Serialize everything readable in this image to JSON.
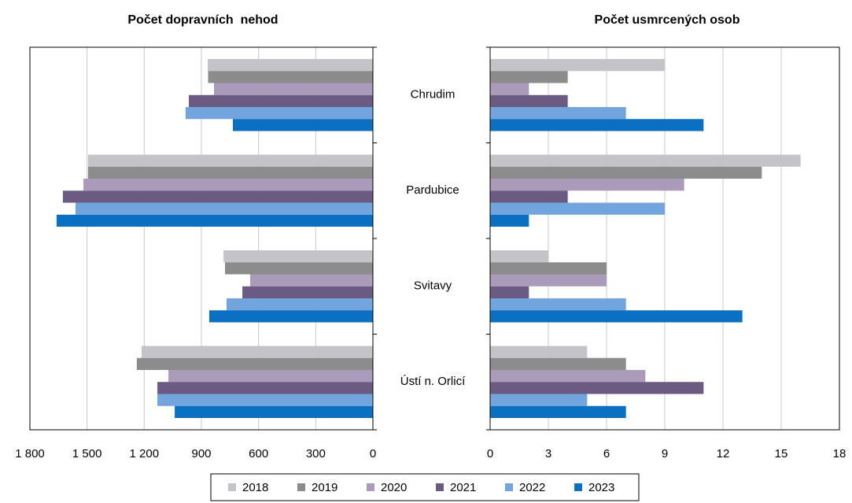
{
  "chart_data": [
    {
      "type": "bar",
      "orientation": "horizontal",
      "title": "Počet dopravních  nehod",
      "categories": [
        "Chrudim",
        "Pardubice",
        "Svitavy",
        "Ústí n. Orlicí"
      ],
      "series": [
        {
          "name": "2018",
          "color": "#c3c3c9",
          "values": [
            867,
            1495,
            784,
            1214
          ]
        },
        {
          "name": "2019",
          "color": "#8c8c8c",
          "values": [
            865,
            1495,
            776,
            1239
          ]
        },
        {
          "name": "2020",
          "color": "#a99bb9",
          "values": [
            834,
            1519,
            644,
            1073
          ]
        },
        {
          "name": "2021",
          "color": "#6b5a82",
          "values": [
            966,
            1627,
            685,
            1131
          ]
        },
        {
          "name": "2022",
          "color": "#72a5de",
          "values": [
            983,
            1561,
            768,
            1131
          ]
        },
        {
          "name": "2023",
          "color": "#0b70c1",
          "values": [
            735,
            1660,
            859,
            1040
          ]
        }
      ],
      "xlim": [
        1800,
        0
      ],
      "xticks": [
        {
          "value": 1800,
          "label": "1 800"
        },
        {
          "value": 1500,
          "label": "1 500"
        },
        {
          "value": 1200,
          "label": "1 200"
        },
        900,
        600,
        300,
        0
      ],
      "grid": true
    },
    {
      "type": "bar",
      "orientation": "horizontal",
      "title": "Počet usmrcených osob",
      "series": [
        {
          "values": [
            9,
            16,
            3,
            5
          ]
        },
        {
          "values": [
            4,
            14,
            6,
            7
          ]
        },
        {
          "values": [
            2,
            10,
            6,
            8
          ]
        },
        {
          "values": [
            4,
            4,
            2,
            11
          ]
        },
        {
          "values": [
            7,
            9,
            7,
            5
          ]
        },
        {
          "values": [
            11,
            2,
            13,
            7
          ]
        }
      ],
      "xlim": [
        0,
        18
      ],
      "xticks": [
        0,
        3,
        6,
        9,
        12,
        15,
        18
      ],
      "grid": true
    }
  ]
}
